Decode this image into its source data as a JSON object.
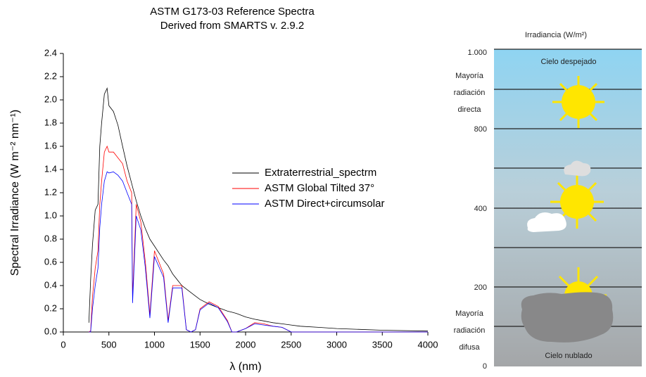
{
  "chart_data": {
    "type": "line",
    "title": "ASTM G173-03 Reference Spectra",
    "subtitle": "Derived from SMARTS v. 2.9.2",
    "x_label": "λ (nm)",
    "y_label": "Spectral Irradiance (W m⁻² nm⁻¹)",
    "x": [
      280,
      300,
      320,
      350,
      380,
      400,
      420,
      450,
      480,
      500,
      550,
      600,
      650,
      700,
      750,
      760,
      800,
      850,
      900,
      950,
      1000,
      1100,
      1150,
      1200,
      1300,
      1350,
      1400,
      1450,
      1500,
      1600,
      1700,
      1800,
      1850,
      1900,
      2000,
      2100,
      2200,
      2300,
      2400,
      2500,
      2600,
      2800,
      3000,
      3500,
      4000
    ],
    "series": [
      {
        "name": "Extraterrestrial_spectrm",
        "color": "#000000",
        "values": [
          0.08,
          0.45,
          0.75,
          1.05,
          1.1,
          1.6,
          1.8,
          2.05,
          2.1,
          1.95,
          1.9,
          1.78,
          1.6,
          1.43,
          1.28,
          1.25,
          1.13,
          1.0,
          0.89,
          0.8,
          0.74,
          0.62,
          0.57,
          0.5,
          0.4,
          0.37,
          0.34,
          0.31,
          0.28,
          0.24,
          0.21,
          0.18,
          0.17,
          0.16,
          0.13,
          0.11,
          0.095,
          0.08,
          0.07,
          0.06,
          0.05,
          0.04,
          0.03,
          0.015,
          0.008
        ]
      },
      {
        "name": "ASTM Global Tilted  37°",
        "color": "#ff0000",
        "values": [
          0,
          0.01,
          0.3,
          0.55,
          0.7,
          1.1,
          1.3,
          1.55,
          1.6,
          1.55,
          1.55,
          1.5,
          1.45,
          1.3,
          1.2,
          0.3,
          1.1,
          0.95,
          0.6,
          0.15,
          0.7,
          0.5,
          0.1,
          0.4,
          0.4,
          0.02,
          0,
          0.02,
          0.2,
          0.26,
          0.22,
          0.1,
          0,
          0,
          0.03,
          0.08,
          0.07,
          0.05,
          0.04,
          0,
          0,
          0,
          0,
          0,
          0
        ]
      },
      {
        "name": "ASTM Direct+circumsolar",
        "color": "#0000ff",
        "values": [
          0,
          0,
          0.2,
          0.4,
          0.55,
          0.9,
          1.1,
          1.3,
          1.38,
          1.37,
          1.38,
          1.35,
          1.3,
          1.2,
          1.1,
          0.25,
          1.0,
          0.88,
          0.55,
          0.12,
          0.65,
          0.47,
          0.08,
          0.38,
          0.38,
          0.02,
          0,
          0.02,
          0.19,
          0.25,
          0.21,
          0.09,
          0,
          0,
          0.03,
          0.07,
          0.06,
          0.05,
          0.04,
          0,
          0,
          0,
          0,
          0,
          0
        ]
      }
    ],
    "xlim": [
      0,
      4000
    ],
    "xticks": [
      0,
      500,
      1000,
      1500,
      2000,
      2500,
      3000,
      3500,
      4000
    ],
    "ylim": [
      0,
      2.4
    ],
    "yticks": [
      {
        "value": 0,
        "label": "0.0"
      },
      0.2,
      0.4,
      0.6,
      0.8,
      {
        "value": 1,
        "label": "1.0"
      },
      1.2,
      1.4,
      1.6,
      1.8,
      {
        "value": 2,
        "label": "2.0"
      },
      2.2,
      2.4
    ],
    "legend_position": "center-right",
    "grid": false
  },
  "panel": {
    "title": "Irradiancia (W/m²)",
    "axis_labels": [
      "1.000",
      "800",
      "400",
      "200",
      "0"
    ],
    "top_label": "Cielo despejado",
    "bottom_label": "Cielo nublado",
    "direct_note": [
      "Mayoría",
      "radiación",
      "directa"
    ],
    "diffuse_note": [
      "Mayoría",
      "radiación",
      "difusa"
    ]
  }
}
